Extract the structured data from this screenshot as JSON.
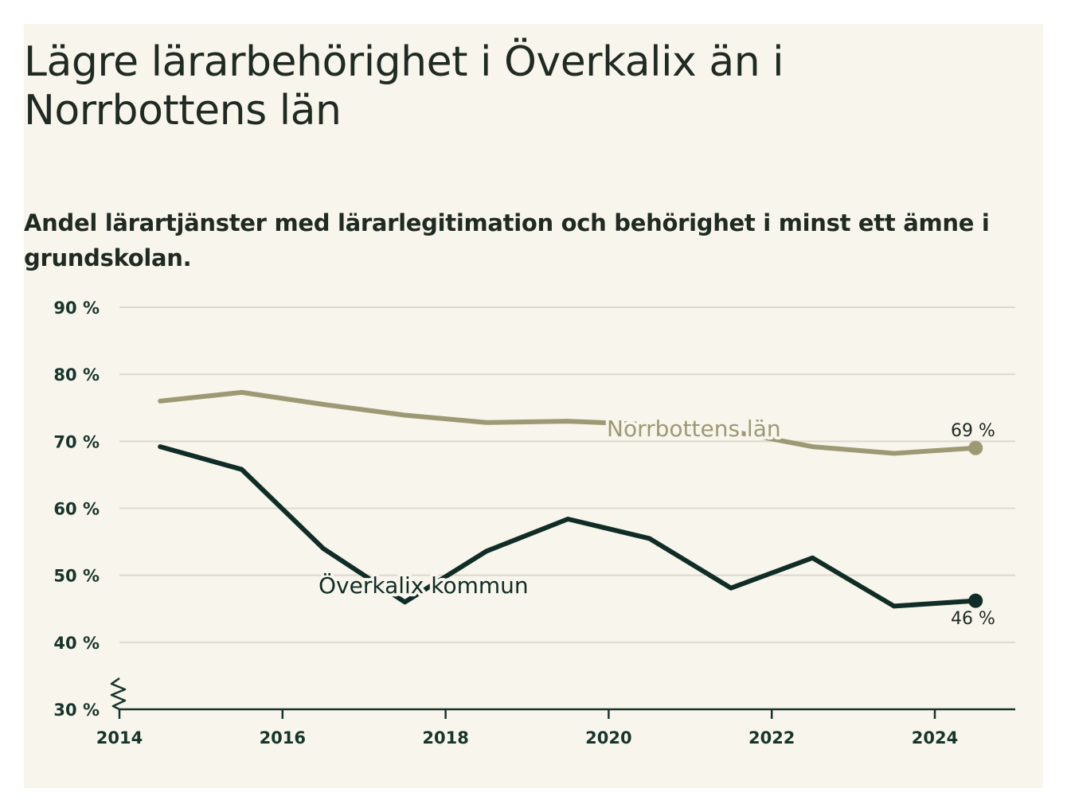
{
  "title": "Lägre lärarbehörighet i Överkalix än i Norrbottens län",
  "subtitle": "Andel lärartjänster med lärarlegitimation och behörighet i minst ett ämne i grundskolan.",
  "colors": {
    "background": "#f8f5ec",
    "grid": "#dcd9d0",
    "axis": "#17352c",
    "norrbotten": "#9d9974",
    "overkalix": "#0f2d26"
  },
  "chart_data": {
    "type": "line",
    "title": "Lägre lärarbehörighet i Överkalix än i Norrbottens län",
    "subtitle": "Andel lärartjänster med lärarlegitimation och behörighet i minst ett ämne i grundskolan.",
    "xlabel": "",
    "ylabel": "",
    "xlim": [
      2014,
      2025
    ],
    "ylim": [
      30,
      90
    ],
    "x_ticks": [
      "2014",
      "2016",
      "2018",
      "2020",
      "2022",
      "2024"
    ],
    "y_ticks": [
      "30 %",
      "40 %",
      "50 %",
      "60 %",
      "70 %",
      "80 %",
      "90 %"
    ],
    "y_axis_broken": true,
    "grid": true,
    "x": [
      2014.5,
      2015.5,
      2016.5,
      2017.5,
      2018.5,
      2019.5,
      2020.5,
      2021.5,
      2022.5,
      2023.5,
      2024.5
    ],
    "series": [
      {
        "name": "Norrbottens län",
        "values": [
          76,
          77.3,
          75.5,
          73.9,
          72.8,
          73,
          72.5,
          71.5,
          69.2,
          68.2,
          69
        ],
        "end_label": "69 %"
      },
      {
        "name": "Överkalix kommun",
        "values": [
          69.2,
          65.8,
          54,
          46,
          53.6,
          58.4,
          55.5,
          48.1,
          52.6,
          45.4,
          46.2
        ],
        "end_label": "46 %"
      }
    ]
  }
}
